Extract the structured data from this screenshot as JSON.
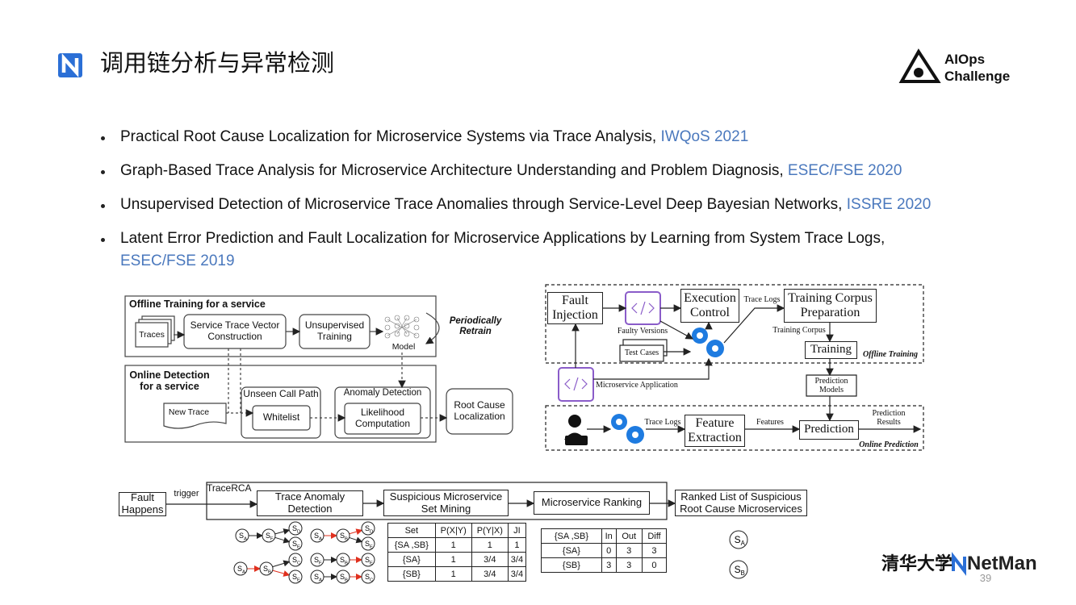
{
  "header": {
    "title": "调用链分析与异常检测",
    "logo_line1": "AIOps",
    "logo_line2": "Challenge"
  },
  "bullets": [
    {
      "text": "Practical Root Cause Localization for Microservice Systems via Trace Analysis, ",
      "venue": "IWQoS 2021"
    },
    {
      "text": "Graph-Based Trace Analysis for Microservice Architecture Understanding and Problem Diagnosis, ",
      "venue": "ESEC/FSE 2020"
    },
    {
      "text": "Unsupervised Detection of Microservice Trace Anomalies through Service-Level Deep Bayesian Networks, ",
      "venue": "ISSRE 2020"
    },
    {
      "text": "Latent Error Prediction and Fault Localization for Microservice Applications by Learning from System Trace Logs,",
      "venue": "ESEC/FSE 2019"
    }
  ],
  "left_diagram": {
    "offline_title": "Offline Training for a service",
    "traces": "Traces",
    "vector": "Service Trace Vector Construction",
    "unsupervised": "Unsupervised Training",
    "model": "Model",
    "retrain": "Periodically Retrain",
    "online_title": "Online Detection for a service",
    "new_trace": "New Trace",
    "unseen": "Unseen Call Path",
    "whitelist": "Whitelist",
    "anomaly": "Anomaly Detection",
    "likelihood": "Likelihood Computation",
    "root_cause": "Root Cause Localization"
  },
  "right_diagram": {
    "fault_injection": "Fault Injection",
    "faulty_versions": "Faulty Versions",
    "test_cases": "Test Cases",
    "execution_control": "Execution Control",
    "trace_logs_top": "Trace Logs",
    "corpus_prep": "Training Corpus Preparation",
    "training_corpus": "Training Corpus",
    "training": "Training",
    "offline_training": "Offline Training",
    "prediction_models": "Prediction Models",
    "microservice_app": "Microservice Application",
    "trace_logs_bottom": "Trace Logs",
    "feature_extraction": "Feature Extraction",
    "features": "Features",
    "prediction": "Prediction",
    "prediction_results": "Prediction Results",
    "online_prediction": "Online Prediction"
  },
  "bottom_diagram": {
    "fault_happens": "Fault Happens",
    "trigger": "trigger",
    "tracerca": "TraceRCA",
    "trace_anomaly": "Trace Anomaly Detection",
    "set_mining": "Suspicious Microservice Set Mining",
    "ranking": "Microservice Ranking",
    "ranked_list": "Ranked List of Suspicious Root Cause Microservices",
    "graph_nodes": [
      "SA",
      "SF",
      "SD",
      "SE",
      "SA",
      "SB",
      "SD",
      "SE",
      "SA",
      "SB",
      "SC",
      "SE",
      "SF",
      "SB",
      "SE",
      "SA",
      "SB",
      "SC"
    ],
    "table1": {
      "header": [
        "Set",
        "P(X|Y)",
        "P(Y|X)",
        "JI"
      ],
      "rows": [
        [
          "{SA ,SB}",
          "1",
          "1",
          "1"
        ],
        [
          "{SA}",
          "1",
          "3/4",
          "3/4"
        ],
        [
          "{SB}",
          "1",
          "3/4",
          "3/4"
        ]
      ]
    },
    "table2": {
      "header": [
        "{SA ,SB}",
        "In",
        "Out",
        "Diff"
      ],
      "rows": [
        [
          "{SA}",
          "0",
          "3",
          "3"
        ],
        [
          "{SB}",
          "3",
          "3",
          "0"
        ]
      ]
    },
    "results": [
      "SA",
      "SB"
    ]
  },
  "footer": {
    "university": "清华大学",
    "brand": "NetMan",
    "page": "39"
  }
}
